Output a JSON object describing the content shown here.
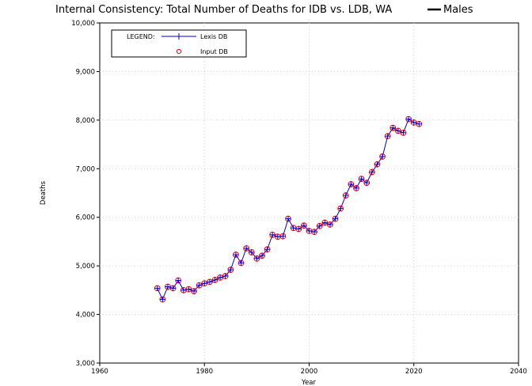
{
  "chart_data": {
    "type": "line",
    "title": "Internal Consistency: Total Number of Deaths for IDB vs. LDB, WA",
    "title_key_label": "Males",
    "xlabel": "Year",
    "ylabel": "Deaths",
    "xlim": [
      1960,
      2040
    ],
    "ylim": [
      3000,
      10000
    ],
    "x_ticks": [
      1960,
      1980,
      2000,
      2020,
      2040
    ],
    "y_ticks": [
      3000,
      4000,
      5000,
      6000,
      7000,
      8000,
      9000,
      10000
    ],
    "x_tick_labels": [
      "1960",
      "1980",
      "2000",
      "2020",
      "2040"
    ],
    "y_tick_labels": [
      "3,000",
      "4,000",
      "5,000",
      "6,000",
      "7,000",
      "8,000",
      "9,000",
      "10,000"
    ],
    "grid": true,
    "legend": {
      "title": "LEGEND:",
      "placement": "top-left",
      "entries": [
        "Lexis DB",
        "Input DB"
      ]
    },
    "colors": {
      "lexis_line": "#0000cc",
      "lexis_marker": "#0000cc",
      "input_marker": "#ff0000"
    },
    "x": [
      1971,
      1972,
      1973,
      1974,
      1975,
      1976,
      1977,
      1978,
      1979,
      1980,
      1981,
      1982,
      1983,
      1984,
      1985,
      1986,
      1987,
      1988,
      1989,
      1990,
      1991,
      1992,
      1993,
      1994,
      1995,
      1996,
      1997,
      1998,
      1999,
      2000,
      2001,
      2002,
      2003,
      2004,
      2005,
      2006,
      2007,
      2008,
      2009,
      2010,
      2011,
      2012,
      2013,
      2014,
      2015,
      2016,
      2017,
      2018,
      2019,
      2020,
      2021
    ],
    "series": [
      {
        "name": "Lexis DB",
        "values": [
          4540,
          4310,
          4570,
          4540,
          4700,
          4500,
          4520,
          4480,
          4600,
          4640,
          4670,
          4710,
          4760,
          4790,
          4920,
          5230,
          5060,
          5360,
          5280,
          5150,
          5210,
          5340,
          5640,
          5600,
          5610,
          5970,
          5780,
          5760,
          5830,
          5720,
          5700,
          5820,
          5890,
          5850,
          5970,
          6180,
          6450,
          6680,
          6600,
          6790,
          6710,
          6930,
          7090,
          7250,
          7670,
          7840,
          7780,
          7740,
          8020,
          7950,
          7920
        ]
      },
      {
        "name": "Input DB",
        "values": [
          4540,
          4310,
          4570,
          4540,
          4700,
          4500,
          4520,
          4480,
          4600,
          4640,
          4670,
          4710,
          4760,
          4790,
          4920,
          5230,
          5060,
          5360,
          5280,
          5150,
          5210,
          5340,
          5640,
          5600,
          5610,
          5970,
          5780,
          5760,
          5830,
          5720,
          5700,
          5820,
          5890,
          5850,
          5970,
          6180,
          6450,
          6680,
          6600,
          6790,
          6710,
          6930,
          7090,
          7250,
          7670,
          7840,
          7780,
          7740,
          8020,
          7950,
          7920
        ]
      }
    ]
  }
}
